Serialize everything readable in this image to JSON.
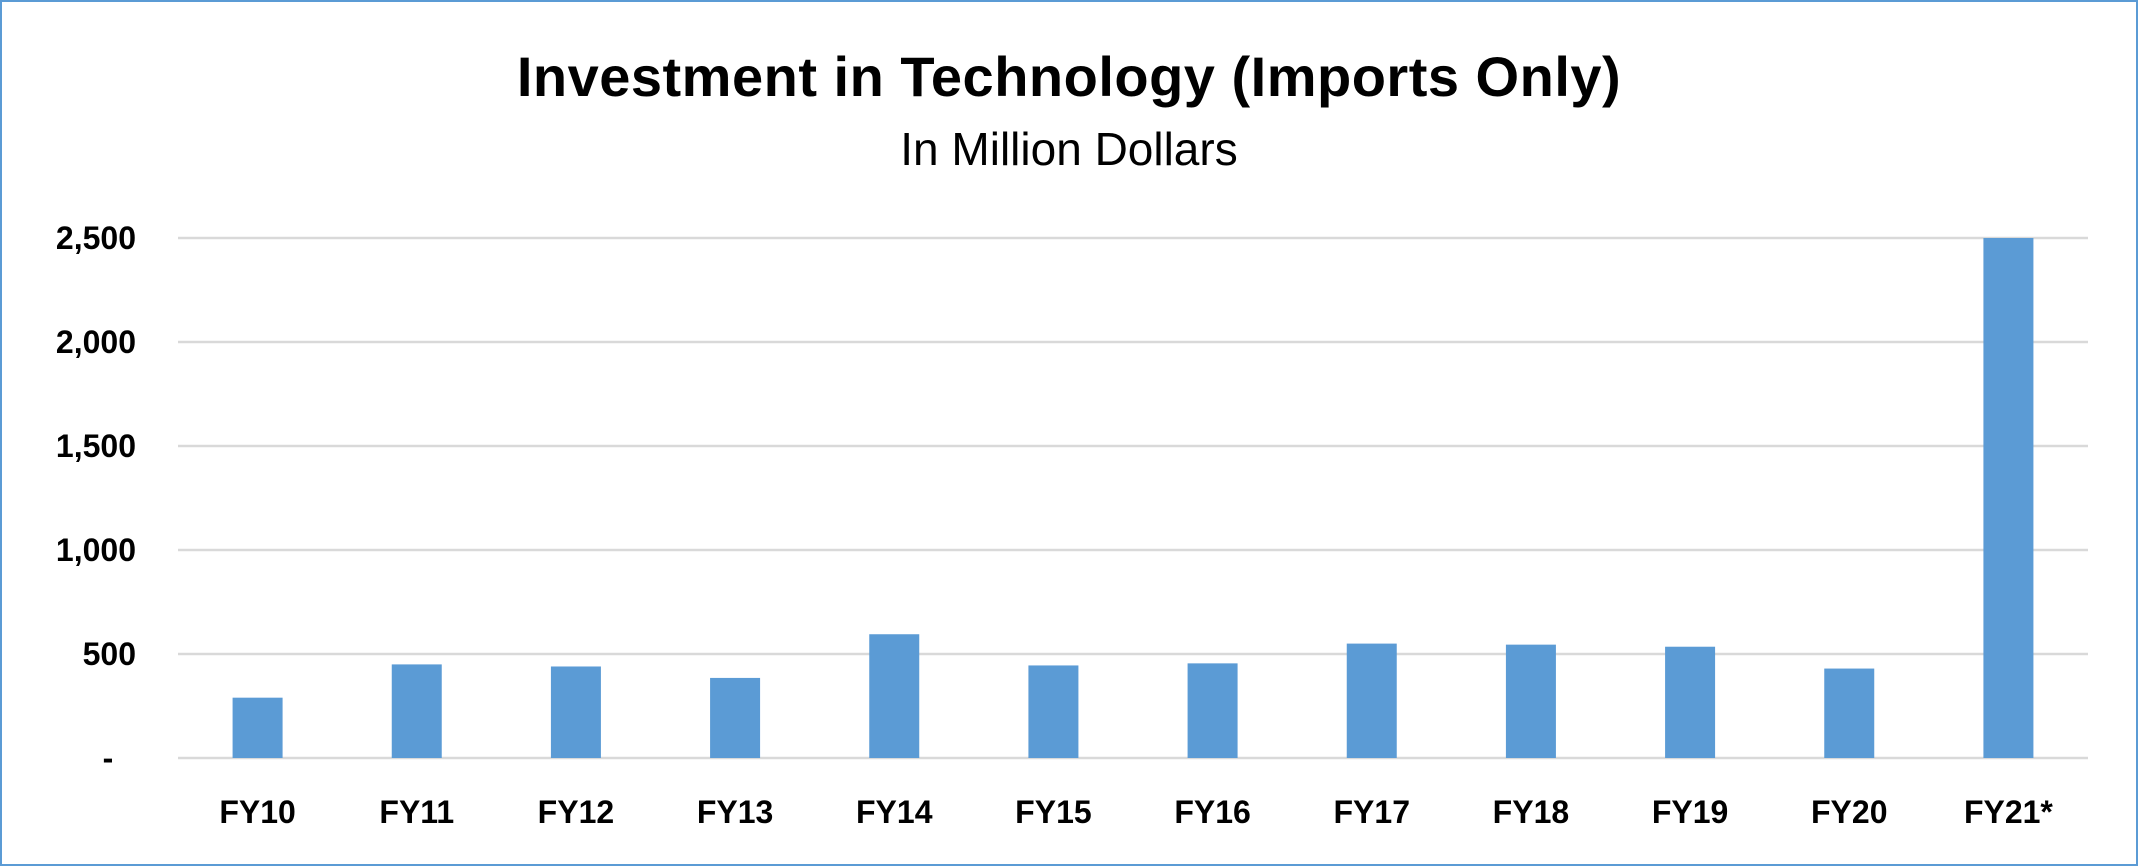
{
  "chart_data": {
    "type": "bar",
    "title": "Investment in Technology (Imports Only)",
    "subtitle": "In Million Dollars",
    "categories": [
      "FY10",
      "FY11",
      "FY12",
      "FY13",
      "FY14",
      "FY15",
      "FY16",
      "FY17",
      "FY18",
      "FY19",
      "FY20",
      "FY21*"
    ],
    "values": [
      290,
      450,
      440,
      385,
      595,
      445,
      455,
      550,
      545,
      535,
      430,
      2500
    ],
    "ylim": [
      0,
      2500
    ],
    "yticks": [
      0,
      500,
      1000,
      1500,
      2000,
      2500
    ],
    "ytick_labels": [
      "-",
      "500",
      "1,000",
      "1,500",
      "2,000",
      "2,500"
    ],
    "xlabel": "",
    "ylabel": "",
    "grid": true,
    "bar_color": "#5b9bd5",
    "grid_color": "#d9d9d9"
  }
}
